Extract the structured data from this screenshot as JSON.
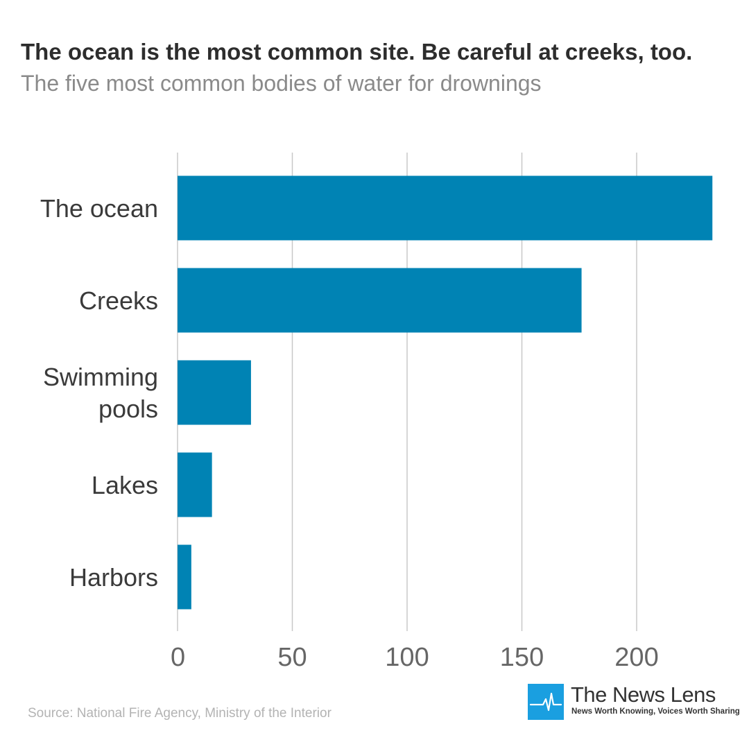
{
  "header": {
    "title": "The ocean is the most common site. Be careful at creeks, too.",
    "subtitle": "The five most common bodies of water for drownings"
  },
  "chart_data": {
    "type": "bar",
    "orientation": "horizontal",
    "categories": [
      [
        "The ocean"
      ],
      [
        "Creeks"
      ],
      [
        "Swimming",
        "pools"
      ],
      [
        "Lakes"
      ],
      [
        "Harbors"
      ]
    ],
    "values": [
      233,
      176,
      32,
      15,
      6
    ],
    "xlim": [
      0,
      240
    ],
    "xticks": [
      0,
      50,
      100,
      150,
      200
    ],
    "grid": true,
    "bar_color": "#0083b4",
    "grid_color": "#c8c8c8"
  },
  "footer": {
    "source": "Source: National Fire Agency, Ministry of the Interior"
  },
  "logo": {
    "name": "The News Lens",
    "tagline": "News Worth Knowing, Voices Worth Sharing",
    "color": "#1a9fe0"
  }
}
